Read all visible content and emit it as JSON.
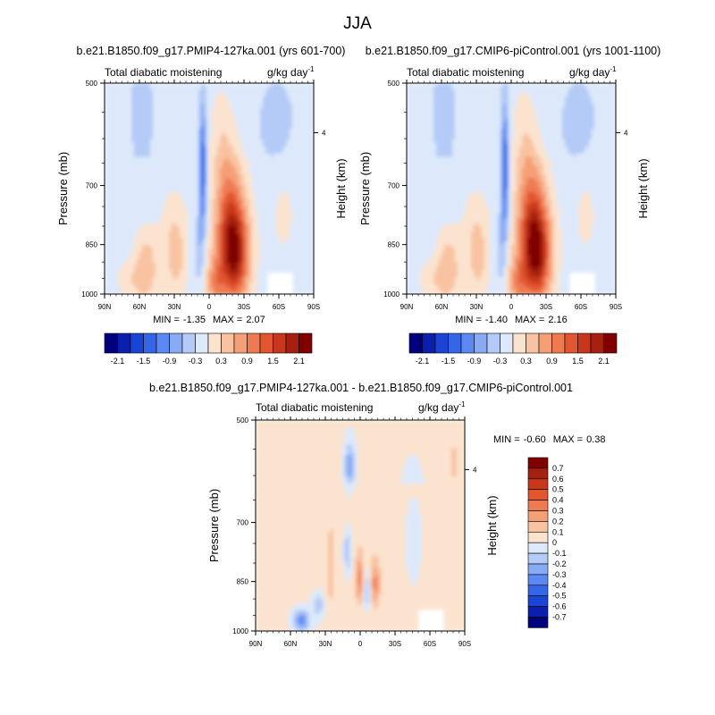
{
  "page_title": "JJA",
  "shared": {
    "pressure_label": "Pressure (mb)",
    "height_label": "Height (km)",
    "pressure_ticks": [
      "500",
      "700",
      "850",
      "1000"
    ],
    "height_tick": "4",
    "lat_ticks": [
      "90N",
      "60N",
      "30N",
      "0",
      "30S",
      "60S",
      "90S"
    ]
  },
  "panels": [
    {
      "title": "b.e21.B1850.f09_g17.PMIP4-127ka.001 (yrs 601-700)",
      "variable": "Total diabatic moistening",
      "units": "g/kg day",
      "units_exp": "-1",
      "min_label": "MIN =",
      "min_value": "-1.35",
      "max_label": "MAX =",
      "max_value": "2.07"
    },
    {
      "title": "b.e21.B1850.f09_g17.CMIP6-piControl.001 (yrs 1001-1100)",
      "variable": "Total diabatic moistening",
      "units": "g/kg day",
      "units_exp": "-1",
      "min_label": "MIN =",
      "min_value": "-1.40",
      "max_label": "MAX =",
      "max_value": "2.16"
    },
    {
      "title": "b.e21.B1850.f09_g17.PMIP4-127ka.001 - b.e21.B1850.f09_g17.CMIP6-piControl.001",
      "variable": "Total diabatic moistening",
      "units": "g/kg day",
      "units_exp": "-1",
      "min_label": "MIN =",
      "min_value": "-0.60",
      "max_label": "MAX =",
      "max_value": "0.38"
    }
  ],
  "colorbars": {
    "abs_labels": [
      "-2.1",
      "-1.5",
      "-0.9",
      "-0.3",
      "0.3",
      "0.9",
      "1.5",
      "2.1"
    ],
    "diff_labels": [
      "0.7",
      "0.6",
      "0.5",
      "0.4",
      "0.3",
      "0.2",
      "0.1",
      "0",
      "-0.1",
      "-0.2",
      "-0.3",
      "-0.4",
      "-0.5",
      "-0.6",
      "-0.7"
    ]
  },
  "colors": {
    "palette": [
      "#00007f",
      "#0a1fae",
      "#1a44d6",
      "#3566e8",
      "#5b88f2",
      "#87aaf5",
      "#b4cbf7",
      "#dde9fb",
      "#fbe3cf",
      "#f9c3a2",
      "#f59f77",
      "#ee7a52",
      "#e1552f",
      "#c8371c",
      "#a6200f",
      "#800000"
    ]
  },
  "chart_data": [
    {
      "type": "heatmap",
      "name": "PMIP4-127ka JJA total diabatic moistening",
      "x": [
        90,
        60,
        30,
        0,
        -30,
        -60,
        -90
      ],
      "x_tick_labels": [
        "90N",
        "60N",
        "30N",
        "0",
        "30S",
        "60S",
        "90S"
      ],
      "xlabel": "",
      "ylabel": "Pressure (mb)",
      "y_levels": [
        500,
        700,
        850,
        1000
      ],
      "levels": [
        -2.1,
        -1.8,
        -1.5,
        -1.2,
        -0.9,
        -0.6,
        -0.3,
        0,
        0.3,
        0.6,
        0.9,
        1.2,
        1.5,
        1.8,
        2.1
      ],
      "min": -1.35,
      "max": 2.07,
      "features": [
        {
          "lat_center": -18,
          "lat_width": 30,
          "p_center": 880,
          "p_width": 220,
          "value": 1.9
        },
        {
          "lat_center": -5,
          "lat_width": 8,
          "p_center": 760,
          "p_width": 300,
          "value": -1.2
        },
        {
          "lat_center": 35,
          "lat_width": 40,
          "p_center": 900,
          "p_width": 180,
          "value": 0.6
        }
      ]
    },
    {
      "type": "heatmap",
      "name": "CMIP6-piControl JJA total diabatic moistening",
      "x": [
        90,
        60,
        30,
        0,
        -30,
        -60,
        -90
      ],
      "x_tick_labels": [
        "90N",
        "60N",
        "30N",
        "0",
        "30S",
        "60S",
        "90S"
      ],
      "xlabel": "",
      "ylabel": "Pressure (mb)",
      "y_levels": [
        500,
        700,
        850,
        1000
      ],
      "levels": [
        -2.1,
        -1.8,
        -1.5,
        -1.2,
        -0.9,
        -0.6,
        -0.3,
        0,
        0.3,
        0.6,
        0.9,
        1.2,
        1.5,
        1.8,
        2.1
      ],
      "min": -1.4,
      "max": 2.16,
      "features": [
        {
          "lat_center": -17,
          "lat_width": 30,
          "p_center": 880,
          "p_width": 220,
          "value": 2.0
        },
        {
          "lat_center": -5,
          "lat_width": 8,
          "p_center": 760,
          "p_width": 300,
          "value": -1.3
        },
        {
          "lat_center": 35,
          "lat_width": 40,
          "p_center": 900,
          "p_width": 180,
          "value": 0.6
        }
      ]
    },
    {
      "type": "heatmap",
      "name": "Difference PMIP4-127ka minus CMIP6-piControl",
      "x": [
        90,
        60,
        30,
        0,
        -30,
        -60,
        -90
      ],
      "x_tick_labels": [
        "90N",
        "60N",
        "30N",
        "0",
        "30S",
        "60S",
        "90S"
      ],
      "xlabel": "",
      "ylabel": "Pressure (mb)",
      "y_levels": [
        500,
        700,
        850,
        1000
      ],
      "levels": [
        -0.7,
        -0.6,
        -0.5,
        -0.4,
        -0.3,
        -0.2,
        -0.1,
        0,
        0.1,
        0.2,
        0.3,
        0.4,
        0.5,
        0.6,
        0.7
      ],
      "min": -0.6,
      "max": 0.38,
      "features": [
        {
          "lat_center": 0,
          "lat_width": 6,
          "p_center": 880,
          "p_width": 120,
          "value": 0.35
        },
        {
          "lat_center": 8,
          "lat_width": 6,
          "p_center": 620,
          "p_width": 200,
          "value": -0.3
        },
        {
          "lat_center": 45,
          "lat_width": 10,
          "p_center": 980,
          "p_width": 40,
          "value": -0.5
        }
      ]
    }
  ]
}
